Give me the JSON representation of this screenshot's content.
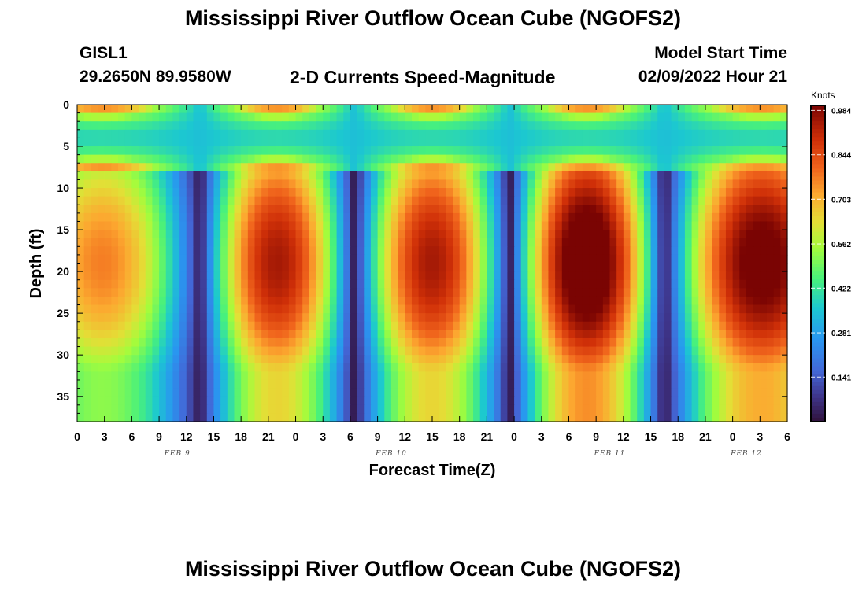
{
  "header": {
    "title": "Mississippi River Outflow Ocean Cube (NGOFS2)",
    "station": "GISL1",
    "coords": "29.2650N  89.9580W",
    "subtitle": "2-D Currents Speed-Magnitude",
    "model_label": "Model Start Time",
    "model_time": "02/09/2022 Hour 21"
  },
  "footer": {
    "title": "Mississippi River Outflow Ocean Cube (NGOFS2)"
  },
  "chart_data": {
    "type": "heatmap",
    "title": "2-D Currents Speed-Magnitude",
    "xlabel": "Forecast Time(Z)",
    "ylabel": "Depth (ft)",
    "x_range_hours": [
      0,
      78
    ],
    "xticks": [
      "0",
      "3",
      "6",
      "9",
      "12",
      "15",
      "18",
      "21",
      "0",
      "3",
      "6",
      "9",
      "12",
      "15",
      "18",
      "21",
      "0",
      "3",
      "6",
      "9",
      "12",
      "15",
      "18",
      "21",
      "0",
      "3",
      "6"
    ],
    "date_labels": [
      {
        "text": "FEB 9",
        "hour": 11
      },
      {
        "text": "FEB 10",
        "hour": 34.5
      },
      {
        "text": "FEB 11",
        "hour": 58.5
      },
      {
        "text": "FEB 12",
        "hour": 73.5
      }
    ],
    "ylim": [
      0,
      38
    ],
    "yticks": [
      "0",
      "5",
      "10",
      "15",
      "20",
      "25",
      "30",
      "35"
    ],
    "colorbar": {
      "title": "Knots",
      "ticks": [
        "0.141",
        "0.281",
        "0.422",
        "0.562",
        "0.703",
        "0.844",
        "0.984"
      ],
      "range": [
        0,
        1.0
      ]
    },
    "slack_hours": [
      13.5,
      30.5,
      47.5,
      64.5
    ],
    "peak_speed_knots": [
      0.7,
      0.86,
      0.86,
      1.0,
      0.95
    ],
    "surface_layer_depth_ft": 8,
    "surface_peak_speed_knots": 0.72
  }
}
